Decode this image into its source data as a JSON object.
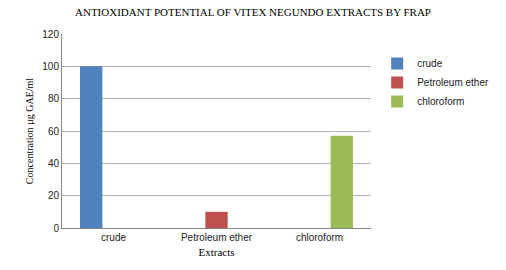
{
  "chart_data": {
    "type": "bar",
    "title": "ANTIOXIDANT POTENTIAL OF VITEX NEGUNDO EXTRACTS BY FRAP",
    "x_label": "Extracts",
    "y_label": "Concentration µg GAE/ml",
    "categories": [
      "crude",
      "Petroleum ether",
      "chloroform"
    ],
    "series": [
      {
        "name": "crude",
        "color": "#4f81bd",
        "values": [
          100,
          null,
          null
        ]
      },
      {
        "name": "Petroleum ether",
        "color": "#c0504d",
        "values": [
          null,
          10,
          null
        ]
      },
      {
        "name": "chloroform",
        "color": "#9bbb59",
        "values": [
          null,
          null,
          57
        ]
      }
    ],
    "ylim": [
      0,
      120
    ],
    "yticks": [
      0,
      20,
      40,
      60,
      80,
      100,
      120
    ],
    "grid": true,
    "legend": "right"
  }
}
